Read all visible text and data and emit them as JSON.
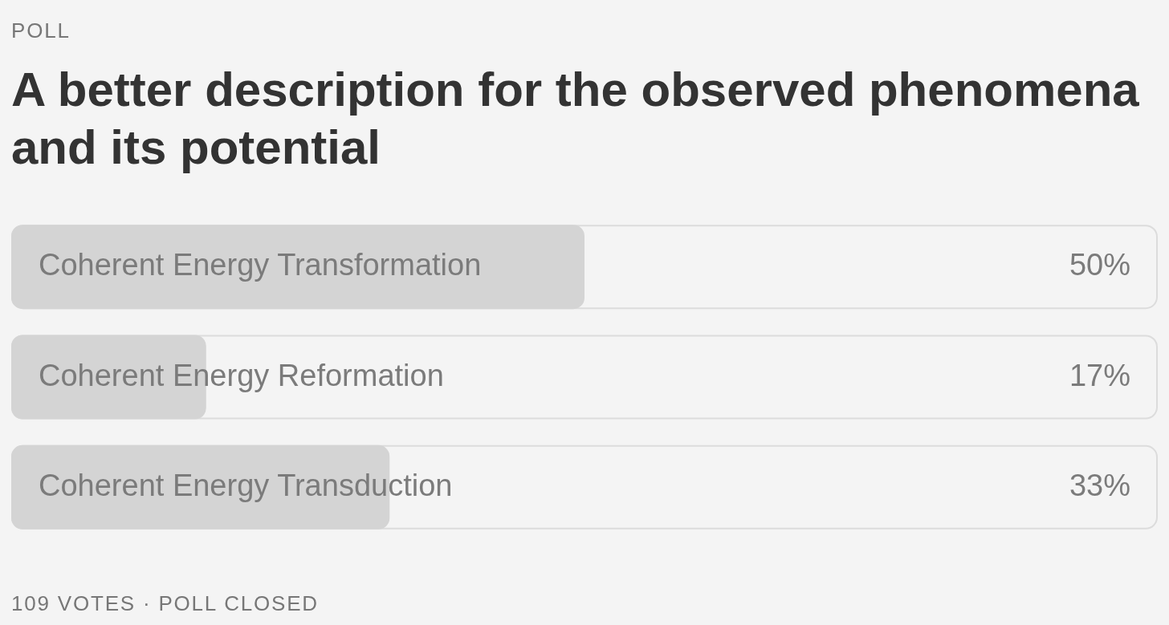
{
  "chart_data": {
    "type": "bar",
    "orientation": "horizontal",
    "title": "A better description for the observed phenomena and its potential",
    "annotations": [
      "POLL",
      "109 VOTES · POLL CLOSED"
    ],
    "categories": [
      "Coherent Energy Transformation",
      "Coherent Energy Reformation",
      "Coherent Energy Transduction"
    ],
    "values": [
      50,
      17,
      33
    ],
    "value_labels": [
      "50%",
      "17%",
      "33%"
    ],
    "color": "#d4d4d4",
    "xlim": [
      0,
      100
    ],
    "tick_labels": "y"
  }
}
